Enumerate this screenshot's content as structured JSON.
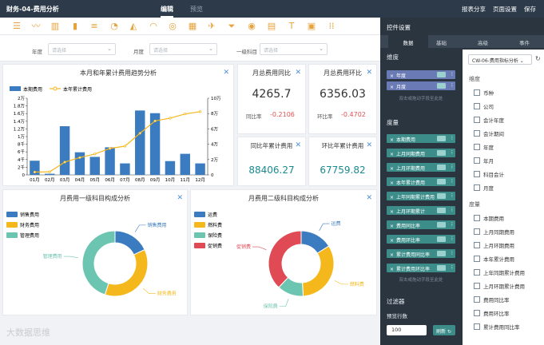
{
  "app": {
    "title": "财务-04-费用分析"
  },
  "tabs": {
    "edit": "编辑",
    "preview": "预览"
  },
  "top_actions": {
    "share": "报表分享",
    "settings": "页面设置",
    "save": "保存"
  },
  "toolbar_icons": [
    "table-icon",
    "line-chart-icon",
    "bar-chart-icon",
    "column-chart-icon",
    "bar-h-icon",
    "pie-icon",
    "area-icon",
    "gauge-icon",
    "ring-gauge-icon",
    "grid-icon",
    "map-icon",
    "funnel-icon",
    "circle-icon",
    "kpi-icon",
    "text-icon",
    "image-icon",
    "more-icon"
  ],
  "filters": [
    {
      "label": "年度",
      "placeholder": "请选择"
    },
    {
      "label": "月度",
      "placeholder": "请选择"
    },
    {
      "label": "一级科目",
      "placeholder": "请选择"
    }
  ],
  "cards": {
    "trend": {
      "title": "本月和年累计费用趋势分析"
    },
    "mom_yoy": {
      "title": "月总费用同比",
      "value": "4265.7",
      "label": "同比率",
      "rate": "-0.2106"
    },
    "mom_hb": {
      "title": "月总费用环比",
      "value": "6356.03",
      "label": "环比率",
      "rate": "-0.4702"
    },
    "ytd_yoy": {
      "title": "同比年累计费用",
      "value": "88406.27"
    },
    "ytd_hb": {
      "title": "环比年累计费用",
      "value": "67759.82"
    },
    "pie1": {
      "title": "月费用一级科目构成分析"
    },
    "pie2": {
      "title": "月费用二级科目构成分析"
    }
  },
  "colors": {
    "bar": "#3b7bbf",
    "line": "#f5b81c",
    "teal": "#6cc5b0",
    "red": "#e04a54"
  },
  "chart_data": [
    {
      "type": "bar",
      "title": "本月和年累计费用趋势分析",
      "categories": [
        "01月",
        "02月",
        "03月",
        "04月",
        "05月",
        "06月",
        "07月",
        "08月",
        "09月",
        "10月",
        "11月",
        "12月"
      ],
      "series": [
        {
          "name": "本期费用",
          "type": "bar",
          "axis": "left",
          "values": [
            3700,
            300,
            12700,
            5900,
            4700,
            7200,
            3000,
            16800,
            16100,
            3600,
            5500,
            3000
          ]
        },
        {
          "name": "本年累计费用",
          "type": "line",
          "axis": "right",
          "values": [
            3700,
            4000,
            16700,
            22600,
            27300,
            34500,
            37500,
            54300,
            70400,
            74000,
            79500,
            82500
          ]
        }
      ],
      "left_ticks": [
        "0",
        "2千",
        "4千",
        "6千",
        "8千",
        "1万",
        "1.2万",
        "1.4万",
        "1.6万",
        "1.8万",
        "2万"
      ],
      "right_ticks": [
        "0",
        "2万",
        "4万",
        "6万",
        "8万",
        "10万"
      ],
      "ylim_left": [
        0,
        20000
      ],
      "ylim_right": [
        0,
        100000
      ]
    },
    {
      "type": "pie",
      "title": "月费用一级科目构成分析",
      "legend": [
        "销售费用",
        "财务费用",
        "管理费用"
      ],
      "categories": [
        "销售费用",
        "财务费用",
        "管理费用"
      ],
      "values": [
        18,
        37,
        45
      ],
      "colors": [
        "#3b7bbf",
        "#f5b81c",
        "#6cc5b0"
      ]
    },
    {
      "type": "pie",
      "title": "月费用二级科目构成分析",
      "legend": [
        "运费",
        "燃料费",
        "保险费",
        "促销费"
      ],
      "categories": [
        "运费",
        "燃料费",
        "保险费",
        "促销费"
      ],
      "values": [
        16,
        33,
        13,
        38
      ],
      "colors": [
        "#3b7bbf",
        "#f5b81c",
        "#6cc5b0",
        "#e04a54"
      ]
    }
  ],
  "right_panel": {
    "title": "控件设置",
    "tabs": [
      "数据",
      "基础",
      "高级",
      "事件"
    ],
    "dimension_title": "维度",
    "dimensions": [
      "年度",
      "月度"
    ],
    "dimension_hint": "双击或拖动字段至此处",
    "measure_title": "度量",
    "measures": [
      "本期费用",
      "上月同期费用",
      "上月环期费用",
      "本年累计费用",
      "上年同期累计费用",
      "上月环期累计",
      "费用同比率",
      "费用环比率",
      "累计费用同比率",
      "累计费用环比率"
    ],
    "measure_hint": "双击或拖动字段至此处",
    "filter_title": "过滤器",
    "preview_rows_label": "预览行数",
    "preview_rows": "100",
    "refresh_label": "刷新",
    "dataset": "CW-06-费用指标分析",
    "field_dim_head": "维度",
    "field_dims": [
      "币种",
      "公司",
      "会计年度",
      "会计期间",
      "年度",
      "年月",
      "科目会计",
      "月度"
    ],
    "field_measure_head": "度量",
    "field_measures": [
      "本期费用",
      "上月同期费用",
      "上月环期费用",
      "本年累计费用",
      "上年同期累计费用",
      "上月环期累计费用",
      "费用同比率",
      "费用环比率",
      "累计费用同比率"
    ]
  },
  "watermark": "大数据思维"
}
